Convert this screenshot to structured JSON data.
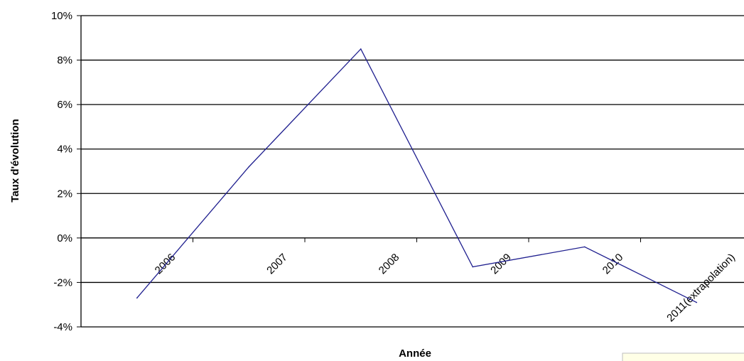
{
  "chart_data": {
    "type": "line",
    "title": "",
    "xlabel": "Année",
    "ylabel": "Taux d'évolution",
    "categories": [
      "2006",
      "2007",
      "2008",
      "2009",
      "2010",
      "2011(extrapolation)"
    ],
    "y_tick_labels": [
      "10%",
      "8%",
      "6%",
      "4%",
      "2%",
      "0%",
      "-2%",
      "-4%"
    ],
    "ylim": [
      -0.04,
      0.1
    ],
    "y_format": "percent",
    "grid": "horizontal",
    "series": [
      {
        "color": "#1f1f8f",
        "values": [
          -0.027,
          0.032,
          0.085,
          -0.013,
          -0.004,
          -0.029
        ]
      }
    ]
  }
}
